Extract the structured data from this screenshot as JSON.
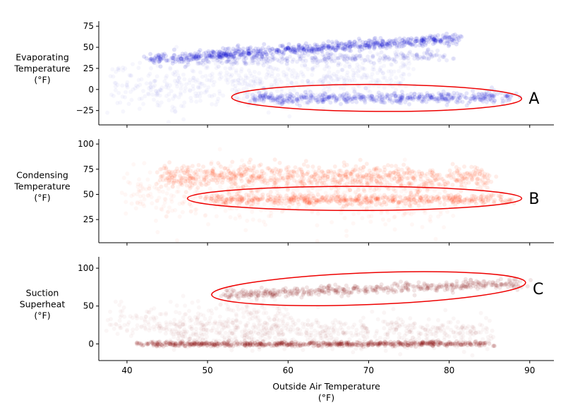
{
  "chart_data": [
    {
      "type": "scatter",
      "ylabel": [
        "Evaporating",
        "Temperature",
        "(°F)"
      ],
      "yticks": [
        -25,
        0,
        25,
        50,
        75
      ],
      "ylim": [
        -42,
        81
      ],
      "xlim": [
        36.5,
        93
      ],
      "color": "#0000cc",
      "annotation": "A",
      "ellipse": {
        "x_range": [
          53,
          89
        ],
        "y_center": -10,
        "y_half": 16
      },
      "clusters": [
        {
          "x": [
            43,
            81
          ],
          "y_start": 36,
          "y_end": 60,
          "spread": 3,
          "n": 700,
          "alpha": 0.12
        },
        {
          "x": [
            48,
            80
          ],
          "y_start": 33,
          "y_end": 40,
          "spread": 3,
          "n": 250,
          "alpha": 0.07
        },
        {
          "x": [
            55,
            88
          ],
          "y_start": -11,
          "y_end": -9,
          "spread": 3,
          "n": 500,
          "alpha": 0.1
        },
        {
          "x": [
            38,
            75
          ],
          "y_start": 0,
          "y_end": 20,
          "spread": 14,
          "n": 600,
          "alpha": 0.035
        }
      ]
    },
    {
      "type": "scatter",
      "ylabel": [
        "Condensing",
        "Temperature",
        "(°F)"
      ],
      "yticks": [
        25,
        50,
        75,
        100
      ],
      "ylim": [
        2,
        105
      ],
      "xlim": [
        36.5,
        93
      ],
      "color": "#ff3300",
      "annotation": "B",
      "ellipse": {
        "x_range": [
          47.5,
          89
        ],
        "y_center": 46,
        "y_half": 12
      },
      "clusters": [
        {
          "x": [
            44,
            85
          ],
          "y_start": 68,
          "y_end": 66,
          "spread": 6,
          "n": 800,
          "alpha": 0.09
        },
        {
          "x": [
            50,
            88
          ],
          "y_start": 45,
          "y_end": 45,
          "spread": 2.5,
          "n": 500,
          "alpha": 0.1
        },
        {
          "x": [
            40,
            80
          ],
          "y_start": 50,
          "y_end": 45,
          "spread": 14,
          "n": 500,
          "alpha": 0.04
        }
      ]
    },
    {
      "type": "scatter",
      "ylabel": [
        "Suction",
        "Superheat",
        "(°F)"
      ],
      "yticks": [
        0,
        50,
        100
      ],
      "ylim": [
        -22,
        115
      ],
      "xlim": [
        36.5,
        93
      ],
      "xticks": [
        40,
        50,
        60,
        70,
        80,
        90
      ],
      "xlabel": [
        "Outside Air Temperature",
        "(°F)"
      ],
      "color": "#800000",
      "annotation": "C",
      "ellipse": {
        "x_range": [
          50.5,
          89.5
        ],
        "y_center": 73,
        "y_half": 21
      },
      "clusters": [
        {
          "x": [
            52,
            89
          ],
          "y_start": 65,
          "y_end": 80,
          "spread": 3,
          "n": 450,
          "alpha": 0.1
        },
        {
          "x": [
            42,
            85
          ],
          "y_start": 0,
          "y_end": 0,
          "spread": 1.5,
          "n": 600,
          "alpha": 0.12
        },
        {
          "x": [
            45,
            85
          ],
          "y_start": 15,
          "y_end": 15,
          "spread": 10,
          "n": 600,
          "alpha": 0.04
        },
        {
          "x": [
            38,
            60
          ],
          "y_start": 30,
          "y_end": 35,
          "spread": 12,
          "n": 250,
          "alpha": 0.035
        }
      ]
    }
  ]
}
